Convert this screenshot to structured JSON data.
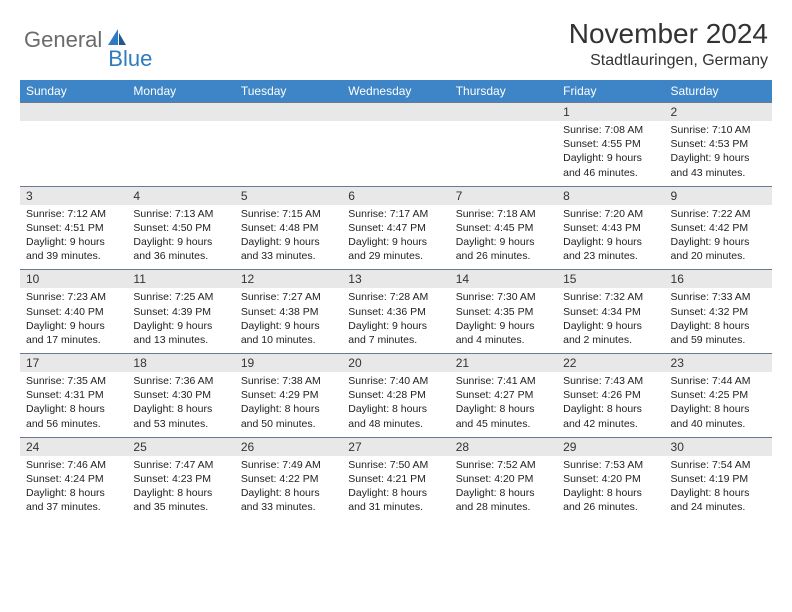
{
  "brand": {
    "general": "General",
    "blue": "Blue"
  },
  "title": "November 2024",
  "location": "Stadtlauringen, Germany",
  "colors": {
    "header_bg": "#3d85c6",
    "daynum_bg": "#e8e8e8",
    "rule": "#6b7a90",
    "logo_blue": "#2d7bc0",
    "logo_gray": "#6b6b6b"
  },
  "weekdays": [
    "Sunday",
    "Monday",
    "Tuesday",
    "Wednesday",
    "Thursday",
    "Friday",
    "Saturday"
  ],
  "weeks": [
    [
      {
        "n": "",
        "lines": [
          "",
          "",
          "",
          ""
        ]
      },
      {
        "n": "",
        "lines": [
          "",
          "",
          "",
          ""
        ]
      },
      {
        "n": "",
        "lines": [
          "",
          "",
          "",
          ""
        ]
      },
      {
        "n": "",
        "lines": [
          "",
          "",
          "",
          ""
        ]
      },
      {
        "n": "",
        "lines": [
          "",
          "",
          "",
          ""
        ]
      },
      {
        "n": "1",
        "lines": [
          "Sunrise: 7:08 AM",
          "Sunset: 4:55 PM",
          "Daylight: 9 hours",
          "and 46 minutes."
        ]
      },
      {
        "n": "2",
        "lines": [
          "Sunrise: 7:10 AM",
          "Sunset: 4:53 PM",
          "Daylight: 9 hours",
          "and 43 minutes."
        ]
      }
    ],
    [
      {
        "n": "3",
        "lines": [
          "Sunrise: 7:12 AM",
          "Sunset: 4:51 PM",
          "Daylight: 9 hours",
          "and 39 minutes."
        ]
      },
      {
        "n": "4",
        "lines": [
          "Sunrise: 7:13 AM",
          "Sunset: 4:50 PM",
          "Daylight: 9 hours",
          "and 36 minutes."
        ]
      },
      {
        "n": "5",
        "lines": [
          "Sunrise: 7:15 AM",
          "Sunset: 4:48 PM",
          "Daylight: 9 hours",
          "and 33 minutes."
        ]
      },
      {
        "n": "6",
        "lines": [
          "Sunrise: 7:17 AM",
          "Sunset: 4:47 PM",
          "Daylight: 9 hours",
          "and 29 minutes."
        ]
      },
      {
        "n": "7",
        "lines": [
          "Sunrise: 7:18 AM",
          "Sunset: 4:45 PM",
          "Daylight: 9 hours",
          "and 26 minutes."
        ]
      },
      {
        "n": "8",
        "lines": [
          "Sunrise: 7:20 AM",
          "Sunset: 4:43 PM",
          "Daylight: 9 hours",
          "and 23 minutes."
        ]
      },
      {
        "n": "9",
        "lines": [
          "Sunrise: 7:22 AM",
          "Sunset: 4:42 PM",
          "Daylight: 9 hours",
          "and 20 minutes."
        ]
      }
    ],
    [
      {
        "n": "10",
        "lines": [
          "Sunrise: 7:23 AM",
          "Sunset: 4:40 PM",
          "Daylight: 9 hours",
          "and 17 minutes."
        ]
      },
      {
        "n": "11",
        "lines": [
          "Sunrise: 7:25 AM",
          "Sunset: 4:39 PM",
          "Daylight: 9 hours",
          "and 13 minutes."
        ]
      },
      {
        "n": "12",
        "lines": [
          "Sunrise: 7:27 AM",
          "Sunset: 4:38 PM",
          "Daylight: 9 hours",
          "and 10 minutes."
        ]
      },
      {
        "n": "13",
        "lines": [
          "Sunrise: 7:28 AM",
          "Sunset: 4:36 PM",
          "Daylight: 9 hours",
          "and 7 minutes."
        ]
      },
      {
        "n": "14",
        "lines": [
          "Sunrise: 7:30 AM",
          "Sunset: 4:35 PM",
          "Daylight: 9 hours",
          "and 4 minutes."
        ]
      },
      {
        "n": "15",
        "lines": [
          "Sunrise: 7:32 AM",
          "Sunset: 4:34 PM",
          "Daylight: 9 hours",
          "and 2 minutes."
        ]
      },
      {
        "n": "16",
        "lines": [
          "Sunrise: 7:33 AM",
          "Sunset: 4:32 PM",
          "Daylight: 8 hours",
          "and 59 minutes."
        ]
      }
    ],
    [
      {
        "n": "17",
        "lines": [
          "Sunrise: 7:35 AM",
          "Sunset: 4:31 PM",
          "Daylight: 8 hours",
          "and 56 minutes."
        ]
      },
      {
        "n": "18",
        "lines": [
          "Sunrise: 7:36 AM",
          "Sunset: 4:30 PM",
          "Daylight: 8 hours",
          "and 53 minutes."
        ]
      },
      {
        "n": "19",
        "lines": [
          "Sunrise: 7:38 AM",
          "Sunset: 4:29 PM",
          "Daylight: 8 hours",
          "and 50 minutes."
        ]
      },
      {
        "n": "20",
        "lines": [
          "Sunrise: 7:40 AM",
          "Sunset: 4:28 PM",
          "Daylight: 8 hours",
          "and 48 minutes."
        ]
      },
      {
        "n": "21",
        "lines": [
          "Sunrise: 7:41 AM",
          "Sunset: 4:27 PM",
          "Daylight: 8 hours",
          "and 45 minutes."
        ]
      },
      {
        "n": "22",
        "lines": [
          "Sunrise: 7:43 AM",
          "Sunset: 4:26 PM",
          "Daylight: 8 hours",
          "and 42 minutes."
        ]
      },
      {
        "n": "23",
        "lines": [
          "Sunrise: 7:44 AM",
          "Sunset: 4:25 PM",
          "Daylight: 8 hours",
          "and 40 minutes."
        ]
      }
    ],
    [
      {
        "n": "24",
        "lines": [
          "Sunrise: 7:46 AM",
          "Sunset: 4:24 PM",
          "Daylight: 8 hours",
          "and 37 minutes."
        ]
      },
      {
        "n": "25",
        "lines": [
          "Sunrise: 7:47 AM",
          "Sunset: 4:23 PM",
          "Daylight: 8 hours",
          "and 35 minutes."
        ]
      },
      {
        "n": "26",
        "lines": [
          "Sunrise: 7:49 AM",
          "Sunset: 4:22 PM",
          "Daylight: 8 hours",
          "and 33 minutes."
        ]
      },
      {
        "n": "27",
        "lines": [
          "Sunrise: 7:50 AM",
          "Sunset: 4:21 PM",
          "Daylight: 8 hours",
          "and 31 minutes."
        ]
      },
      {
        "n": "28",
        "lines": [
          "Sunrise: 7:52 AM",
          "Sunset: 4:20 PM",
          "Daylight: 8 hours",
          "and 28 minutes."
        ]
      },
      {
        "n": "29",
        "lines": [
          "Sunrise: 7:53 AM",
          "Sunset: 4:20 PM",
          "Daylight: 8 hours",
          "and 26 minutes."
        ]
      },
      {
        "n": "30",
        "lines": [
          "Sunrise: 7:54 AM",
          "Sunset: 4:19 PM",
          "Daylight: 8 hours",
          "and 24 minutes."
        ]
      }
    ]
  ]
}
